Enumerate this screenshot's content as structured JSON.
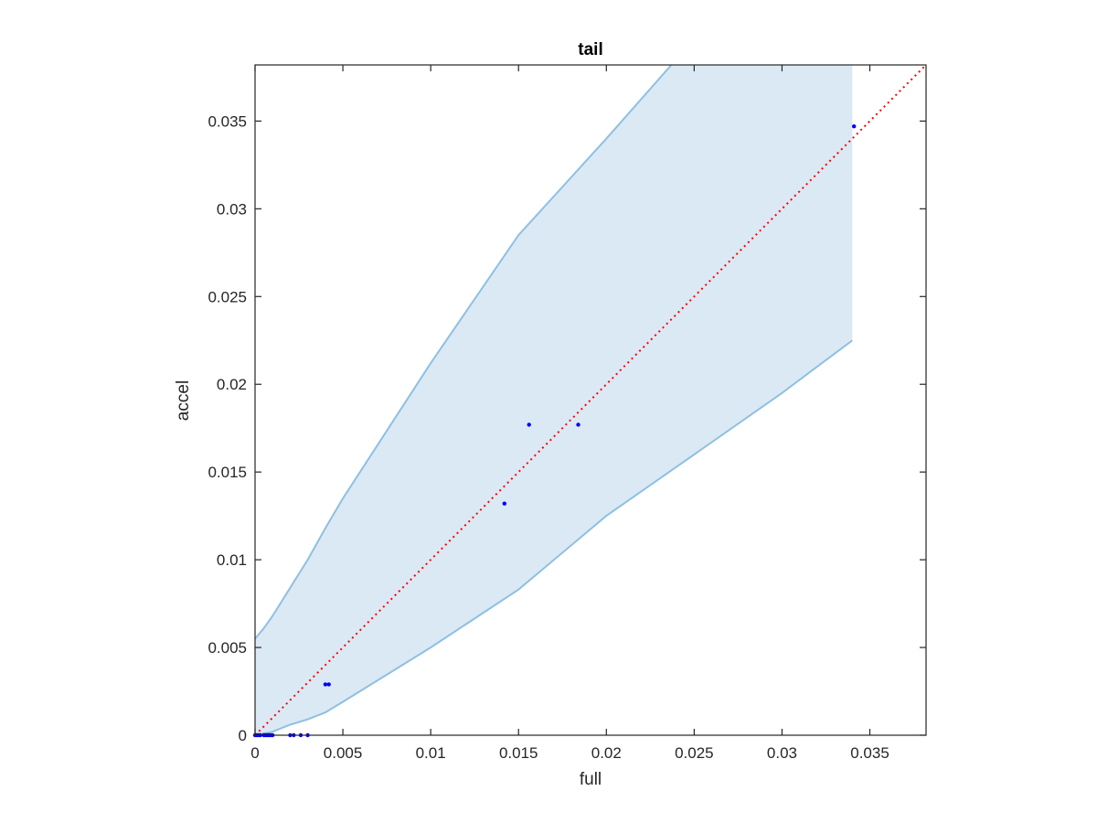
{
  "chart_data": {
    "type": "scatter",
    "title": "tail",
    "xlabel": "full",
    "ylabel": "accel",
    "xlim": [
      0,
      0.0382
    ],
    "ylim": [
      0,
      0.0382
    ],
    "xticks": [
      0,
      0.005,
      0.01,
      0.015,
      0.02,
      0.025,
      0.03,
      0.035
    ],
    "yticks": [
      0,
      0.005,
      0.01,
      0.015,
      0.02,
      0.025,
      0.03,
      0.035
    ],
    "xtick_labels": [
      "0",
      "0.005",
      "0.01",
      "0.015",
      "0.02",
      "0.025",
      "0.03",
      "0.035"
    ],
    "ytick_labels": [
      "0",
      "0.005",
      "0.01",
      "0.015",
      "0.02",
      "0.025",
      "0.03",
      "0.035"
    ],
    "grid": false,
    "colors": {
      "band_fill": "#dbe9f5",
      "band_edge": "#8ec0e2",
      "points": "#0000ff",
      "reference_line": "#ff0000",
      "axes": "#262626"
    },
    "band": {
      "upper": [
        [
          0,
          0.0055
        ],
        [
          0.0005,
          0.0061
        ],
        [
          0.001,
          0.0068
        ],
        [
          0.002,
          0.0084
        ],
        [
          0.003,
          0.01
        ],
        [
          0.004,
          0.0118
        ],
        [
          0.005,
          0.0135
        ],
        [
          0.01,
          0.0212
        ],
        [
          0.015,
          0.0285
        ],
        [
          0.02,
          0.034
        ],
        [
          0.0237,
          0.0382
        ]
      ],
      "lower": [
        [
          0,
          0
        ],
        [
          0.001,
          0.0002
        ],
        [
          0.002,
          0.0006
        ],
        [
          0.003,
          0.0009
        ],
        [
          0.004,
          0.0013
        ],
        [
          0.005,
          0.0019
        ],
        [
          0.01,
          0.005
        ],
        [
          0.015,
          0.0083
        ],
        [
          0.02,
          0.0125
        ],
        [
          0.025,
          0.016
        ],
        [
          0.03,
          0.0195
        ],
        [
          0.034,
          0.0225
        ]
      ],
      "cutoff_x": 0.034
    },
    "reference_line": {
      "style": "dotted",
      "from": [
        0,
        0
      ],
      "to": [
        0.0382,
        0.0382
      ]
    },
    "points": [
      [
        0.0,
        0.0
      ],
      [
        0.0001,
        0.0
      ],
      [
        0.0002,
        0.0
      ],
      [
        0.0003,
        0.0
      ],
      [
        0.0005,
        0.0
      ],
      [
        0.0006,
        0.0
      ],
      [
        0.0007,
        0.0
      ],
      [
        0.0008,
        0.0
      ],
      [
        0.0009,
        0.0
      ],
      [
        0.001,
        0.0
      ],
      [
        0.002,
        0.0
      ],
      [
        0.0022,
        0.0
      ],
      [
        0.0026,
        0.0
      ],
      [
        0.003,
        0.0
      ],
      [
        0.004,
        0.0029
      ],
      [
        0.0042,
        0.0029
      ],
      [
        0.0142,
        0.0132
      ],
      [
        0.0156,
        0.0177
      ],
      [
        0.0184,
        0.0177
      ],
      [
        0.0341,
        0.0347
      ]
    ]
  }
}
